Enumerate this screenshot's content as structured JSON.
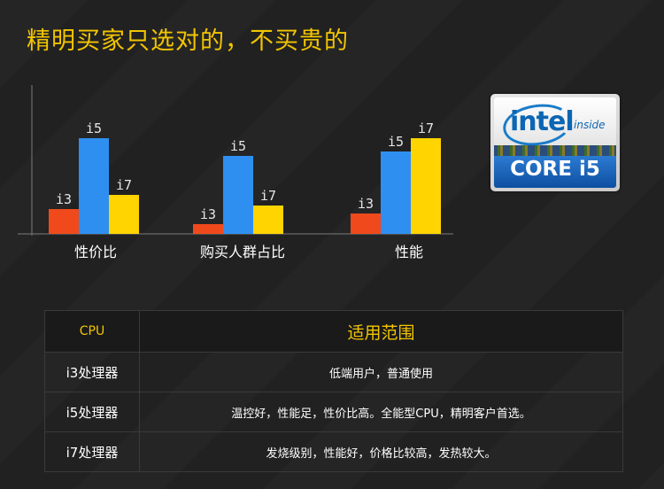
{
  "title": "精明买家只选对的，不买贵的",
  "chart_data": {
    "type": "bar",
    "categories": [
      "性价比",
      "购买人群占比",
      "性能"
    ],
    "series": [
      {
        "name": "i3",
        "color": "#f04a1c",
        "values": [
          28,
          11,
          23
        ]
      },
      {
        "name": "i5",
        "color": "#2e8ff0",
        "values": [
          108,
          88,
          93
        ]
      },
      {
        "name": "i7",
        "color": "#ffd400",
        "values": [
          44,
          32,
          108
        ]
      }
    ],
    "series_labels_on_bars": true,
    "legend": "none",
    "grid": false
  },
  "logo": {
    "brand": "intel",
    "tag": "inside",
    "product": "CORE i5",
    "colors": {
      "brand": "#0b66b3",
      "band": "#1a5fb4"
    }
  },
  "table": {
    "header": {
      "col1": "CPU",
      "col2": "适用范围"
    },
    "rows": [
      {
        "cpu": "i3处理器",
        "usage": "低端用户，普通使用"
      },
      {
        "cpu": "i5处理器",
        "usage": "温控好，性能足，性价比高。全能型CPU，精明客户首选。"
      },
      {
        "cpu": "i7处理器",
        "usage": "发烧级别，性能好，价格比较高，发热较大。"
      }
    ]
  },
  "colors": {
    "accent": "#f2c500",
    "background": "#212121"
  }
}
